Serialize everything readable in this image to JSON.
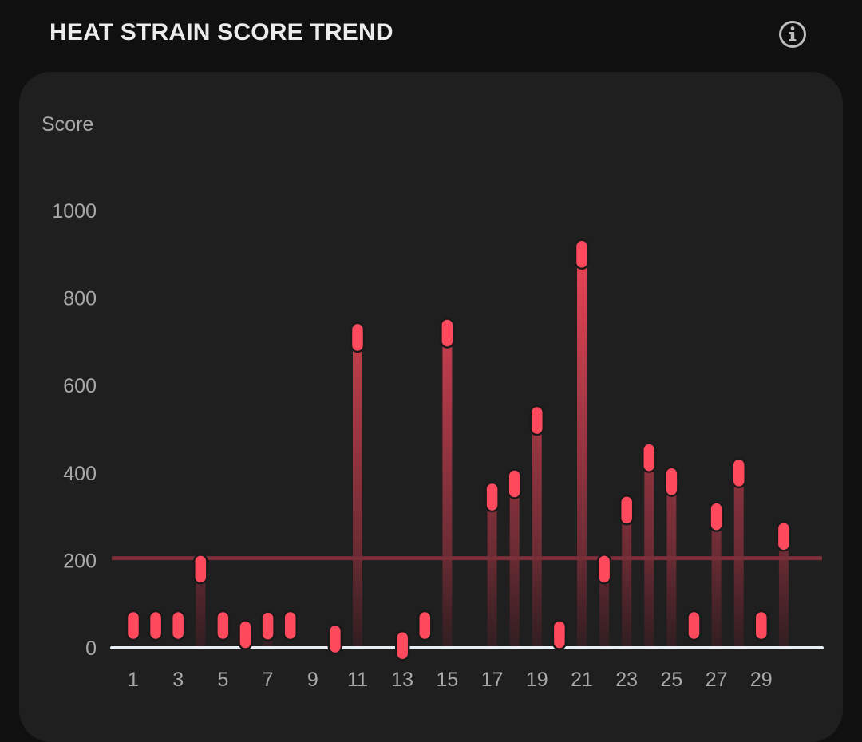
{
  "header": {
    "title": "HEAT STRAIN SCORE TREND",
    "info_icon": "info-circle-icon"
  },
  "colors": {
    "background": "#101010",
    "card": "#1f1f1f",
    "bar": "#ff4a5e",
    "threshold": "#7a2e38",
    "axis": "#e8eef3",
    "label": "#a9a9a9"
  },
  "chart_data": {
    "type": "bar",
    "title": "HEAT STRAIN SCORE TREND",
    "ylabel": "Score",
    "xlabel": "",
    "ylim": [
      0,
      1000
    ],
    "yticks": [
      0,
      200,
      400,
      600,
      800,
      1000
    ],
    "x": [
      1,
      2,
      3,
      4,
      5,
      6,
      7,
      8,
      9,
      10,
      11,
      12,
      13,
      14,
      15,
      16,
      17,
      18,
      19,
      20,
      21,
      22,
      23,
      24,
      25,
      26,
      27,
      28,
      29,
      30
    ],
    "xtick_labels": [
      "1",
      "3",
      "5",
      "7",
      "9",
      "11",
      "13",
      "15",
      "17",
      "19",
      "21",
      "23",
      "25",
      "27",
      "29"
    ],
    "values": [
      0,
      0,
      0,
      180,
      0,
      30,
      50,
      0,
      null,
      20,
      710,
      null,
      5,
      0,
      720,
      null,
      345,
      375,
      520,
      30,
      900,
      180,
      315,
      435,
      380,
      0,
      300,
      400,
      0,
      255
    ],
    "threshold": 205,
    "grid": false,
    "legend": "none"
  }
}
